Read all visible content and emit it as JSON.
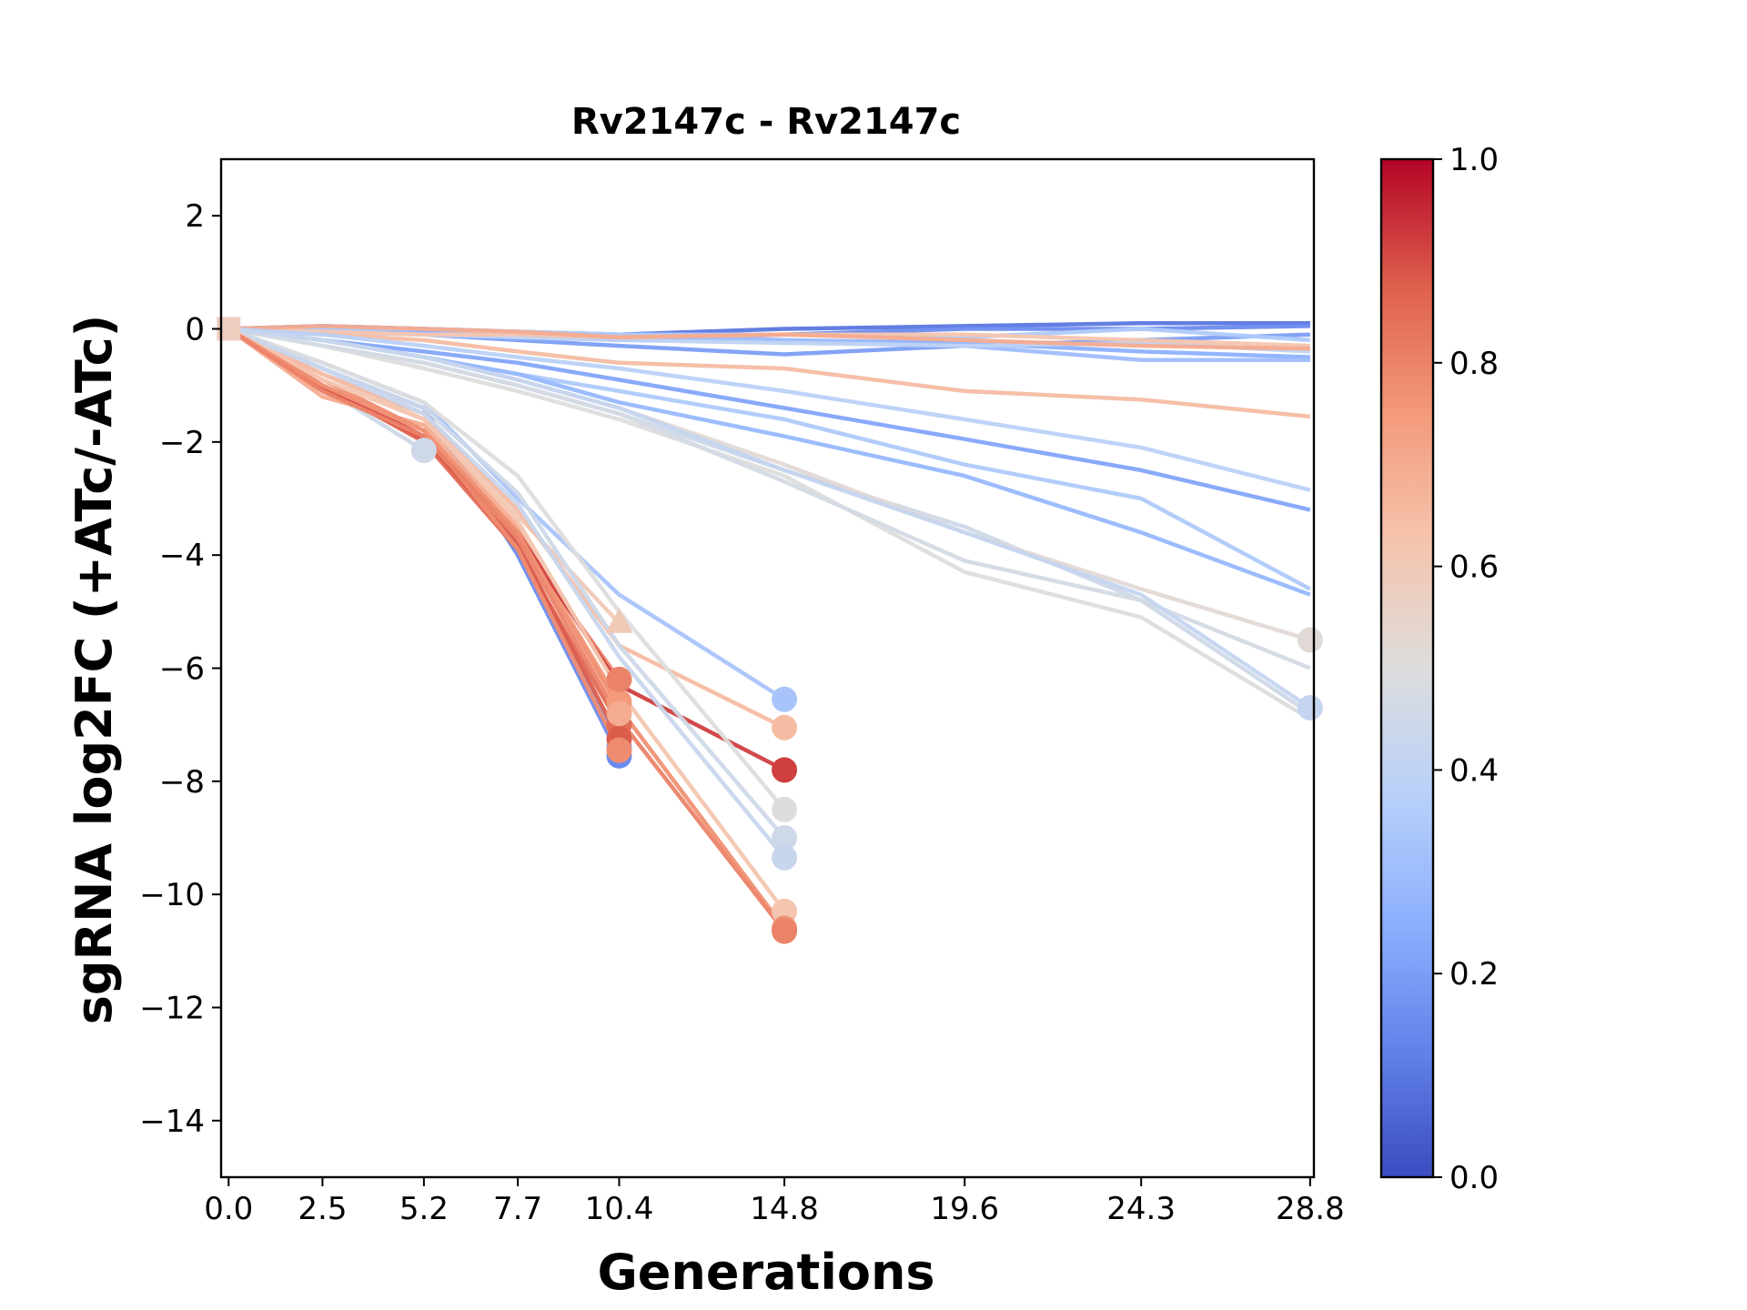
{
  "chart_data": {
    "type": "line",
    "title": "Rv2147c - Rv2147c",
    "xlabel": "Generations",
    "ylabel": "sgRNA log2FC (+ATc/-ATc)",
    "x_ticks": [
      "0.0",
      "2.5",
      "5.2",
      "7.7",
      "10.4",
      "14.8",
      "19.6",
      "24.3",
      "28.8"
    ],
    "y_ticks": [
      2,
      0,
      -2,
      -4,
      -6,
      -8,
      -10,
      -12,
      -14
    ],
    "xlim": [
      -0.2,
      28.9
    ],
    "ylim": [
      -15,
      3
    ],
    "grid": false,
    "colorbar": {
      "colormap": "coolwarm",
      "range": [
        0.0,
        1.0
      ],
      "ticks": [
        "0.0",
        "0.2",
        "0.4",
        "0.6",
        "0.8",
        "1.0"
      ]
    },
    "series": [
      {
        "c": 0.1,
        "x": [
          0,
          2.5,
          5.2,
          7.7,
          10.4,
          14.8,
          19.6,
          24.3,
          28.8
        ],
        "y": [
          0,
          0.05,
          0.0,
          -0.05,
          -0.1,
          0.0,
          0.05,
          0.1,
          0.1
        ]
      },
      {
        "c": 0.15,
        "x": [
          0,
          2.5,
          5.2,
          7.7,
          10.4,
          14.8,
          19.6,
          24.3,
          28.8
        ],
        "y": [
          0,
          0.0,
          -0.05,
          -0.1,
          -0.2,
          -0.1,
          0.0,
          0.0,
          0.05
        ]
      },
      {
        "c": 0.2,
        "x": [
          0,
          2.5,
          5.2,
          7.7,
          10.4,
          14.8,
          19.6,
          24.3,
          28.8
        ],
        "y": [
          0,
          -0.05,
          -0.1,
          -0.2,
          -0.3,
          -0.45,
          -0.3,
          -0.2,
          -0.1
        ]
      },
      {
        "c": 0.25,
        "x": [
          0,
          2.5,
          5.2,
          7.7,
          10.4,
          14.8,
          19.6,
          24.3,
          28.8
        ],
        "y": [
          0,
          0.0,
          -0.05,
          -0.1,
          -0.15,
          -0.2,
          -0.25,
          -0.4,
          -0.5
        ]
      },
      {
        "c": 0.3,
        "x": [
          0,
          2.5,
          5.2,
          7.7,
          10.4,
          14.8,
          19.6,
          24.3,
          28.8
        ],
        "y": [
          0,
          -0.05,
          -0.1,
          -0.05,
          -0.1,
          -0.2,
          -0.3,
          -0.55,
          -0.55
        ]
      },
      {
        "c": 0.35,
        "x": [
          0,
          2.5,
          5.2,
          7.7,
          10.4,
          14.8,
          19.6,
          24.3,
          28.8
        ],
        "y": [
          0,
          0.0,
          0.0,
          -0.05,
          -0.1,
          -0.1,
          -0.15,
          0.0,
          -0.2
        ]
      },
      {
        "c": 0.4,
        "x": [
          0,
          2.5,
          5.2,
          7.7,
          10.4,
          14.8,
          19.6,
          24.3,
          28.8
        ],
        "y": [
          0,
          -0.05,
          -0.1,
          -0.15,
          -0.2,
          -0.25,
          -0.3,
          -0.25,
          -0.4
        ]
      },
      {
        "c": 0.62,
        "x": [
          0,
          2.5,
          5.2,
          7.7,
          10.4,
          14.8,
          19.6,
          24.3,
          28.8
        ],
        "y": [
          0,
          -0.05,
          -0.1,
          -0.1,
          -0.15,
          -0.1,
          -0.1,
          -0.2,
          -0.3
        ]
      },
      {
        "c": 0.7,
        "x": [
          0,
          2.5,
          5.2,
          7.7,
          10.4,
          14.8,
          19.6,
          24.3,
          28.8
        ],
        "y": [
          0,
          0.05,
          0.0,
          -0.05,
          -0.15,
          -0.1,
          -0.2,
          -0.3,
          -0.35
        ]
      },
      {
        "c": 0.65,
        "x": [
          0,
          2.5,
          5.2,
          7.7,
          10.4,
          14.8,
          19.6,
          24.3,
          28.8
        ],
        "y": [
          0,
          -0.1,
          -0.2,
          -0.4,
          -0.6,
          -0.7,
          -1.1,
          -1.25,
          -1.55
        ]
      },
      {
        "c": 0.22,
        "x": [
          0,
          2.5,
          5.2,
          7.7,
          10.4,
          14.8,
          19.6,
          24.3,
          28.8
        ],
        "y": [
          0,
          -0.2,
          -0.4,
          -0.6,
          -0.9,
          -1.4,
          -1.95,
          -2.5,
          -3.2
        ]
      },
      {
        "c": 0.35,
        "x": [
          0,
          2.5,
          5.2,
          7.7,
          10.4,
          14.8,
          19.6,
          24.3,
          28.8
        ],
        "y": [
          0,
          -0.2,
          -0.5,
          -0.8,
          -1.1,
          -1.6,
          -2.4,
          -3.0,
          -4.6
        ]
      },
      {
        "c": 0.38,
        "x": [
          0,
          2.5,
          5.2,
          7.7,
          10.4,
          14.8,
          19.6,
          24.3,
          28.8
        ],
        "y": [
          0,
          -0.1,
          -0.3,
          -0.5,
          -0.7,
          -1.1,
          -1.6,
          -2.1,
          -2.85
        ]
      },
      {
        "c": 0.28,
        "x": [
          0,
          2.5,
          5.2,
          7.7,
          10.4,
          14.8,
          19.6,
          24.3,
          28.8
        ],
        "y": [
          0,
          -0.2,
          -0.5,
          -0.8,
          -1.3,
          -1.9,
          -2.6,
          -3.6,
          -4.7
        ]
      },
      {
        "c": 0.45,
        "x": [
          0,
          2.5,
          5.2,
          7.7,
          10.4,
          14.8,
          19.6,
          24.3,
          28.8
        ],
        "y": [
          0,
          -0.3,
          -0.6,
          -1.0,
          -1.5,
          -2.5,
          -3.5,
          -4.8,
          -6.8
        ]
      },
      {
        "c": 0.5,
        "x": [
          0,
          2.5,
          5.2,
          7.7,
          10.4,
          14.8,
          19.6,
          24.3,
          28.8
        ],
        "y": [
          0,
          -0.3,
          -0.7,
          -1.1,
          -1.6,
          -2.6,
          -4.3,
          -5.1,
          -6.9
        ]
      },
      {
        "c": 0.52,
        "x": [
          0,
          2.5,
          5.2,
          7.7,
          10.4,
          14.8,
          19.6,
          24.3,
          28.8
        ],
        "y": [
          0,
          -0.2,
          -0.5,
          -0.9,
          -1.4,
          -2.4,
          -3.6,
          -4.6,
          -5.5
        ],
        "marker_last": true
      },
      {
        "c": 0.47,
        "x": [
          0,
          2.5,
          5.2,
          7.7,
          10.4,
          14.8,
          19.6,
          24.3,
          28.8
        ],
        "y": [
          0,
          -0.3,
          -0.6,
          -1.0,
          -1.5,
          -2.7,
          -4.1,
          -4.8,
          -6.0
        ]
      },
      {
        "c": 0.42,
        "x": [
          0,
          2.5,
          5.2,
          7.7,
          10.4,
          14.8,
          19.6,
          24.3,
          28.8
        ],
        "y": [
          0,
          -0.2,
          -0.5,
          -0.9,
          -1.4,
          -2.5,
          -3.6,
          -4.7,
          -6.7
        ],
        "marker_last": true
      },
      {
        "c": 0.45,
        "x": [
          0,
          5.2
        ],
        "y": [
          0,
          -2.15
        ],
        "marker_last": true
      },
      {
        "c": 0.15,
        "x": [
          0,
          2.5,
          5.2,
          7.7,
          10.4
        ],
        "y": [
          0,
          -0.7,
          -1.4,
          -4.0,
          -7.55
        ],
        "marker_last": true
      },
      {
        "c": 0.2,
        "x": [
          0,
          2.5,
          5.2,
          7.7,
          10.4
        ],
        "y": [
          0,
          -0.8,
          -1.5,
          -3.8,
          -7.4
        ],
        "marker_last": true
      },
      {
        "c": 0.75,
        "x": [
          0,
          2.5,
          5.2,
          7.7,
          10.4
        ],
        "y": [
          0,
          -1.0,
          -1.8,
          -3.6,
          -6.6
        ],
        "marker_last": true
      },
      {
        "c": 0.8,
        "x": [
          0,
          2.5,
          5.2,
          7.7,
          10.4
        ],
        "y": [
          0,
          -1.1,
          -1.9,
          -3.7,
          -6.2
        ],
        "marker_last": true
      },
      {
        "c": 0.85,
        "x": [
          0,
          2.5,
          5.2,
          7.7,
          10.4
        ],
        "y": [
          0,
          -1.0,
          -2.0,
          -3.9,
          -7.0
        ],
        "marker_last": true
      },
      {
        "c": 0.88,
        "x": [
          0,
          2.5,
          5.2,
          7.7,
          10.4
        ],
        "y": [
          0,
          -1.05,
          -1.95,
          -3.8,
          -7.25
        ],
        "marker_last": true
      },
      {
        "c": 0.7,
        "x": [
          0,
          2.5,
          5.2,
          7.7,
          10.4
        ],
        "y": [
          0,
          -1.2,
          -1.7,
          -3.5,
          -6.8
        ],
        "marker_last": true
      },
      {
        "c": 0.78,
        "x": [
          0,
          2.5,
          5.2,
          7.7,
          10.4
        ],
        "y": [
          0,
          -0.9,
          -1.8,
          -3.9,
          -7.45
        ],
        "marker_last": true
      },
      {
        "c": 0.6,
        "x": [
          0,
          2.5,
          5.2,
          7.7,
          10.4
        ],
        "y": [
          0,
          -0.8,
          -1.6,
          -3.3,
          -5.2
        ],
        "marker_last": true,
        "marker": "triangle"
      },
      {
        "c": 0.92,
        "x": [
          0,
          2.5,
          5.2,
          7.7,
          10.4,
          14.8
        ],
        "y": [
          0,
          -1.0,
          -1.9,
          -3.6,
          -6.3,
          -7.8
        ],
        "marker_last": true
      },
      {
        "c": 0.33,
        "x": [
          0,
          2.5,
          5.2,
          7.7,
          10.4,
          14.8
        ],
        "y": [
          0,
          -0.6,
          -1.3,
          -3.0,
          -4.7,
          -6.55
        ],
        "marker_last": true
      },
      {
        "c": 0.65,
        "x": [
          0,
          2.5,
          5.2,
          7.7,
          10.4,
          14.8
        ],
        "y": [
          0,
          -0.8,
          -1.5,
          -3.2,
          -5.6,
          -7.05
        ],
        "marker_last": true
      },
      {
        "c": 0.5,
        "x": [
          0,
          2.5,
          5.2,
          7.7,
          10.4,
          14.8
        ],
        "y": [
          0,
          -0.6,
          -1.3,
          -2.6,
          -5.0,
          -8.5
        ],
        "marker_last": true
      },
      {
        "c": 0.45,
        "x": [
          0,
          2.5,
          5.2,
          7.7,
          10.4,
          14.8
        ],
        "y": [
          0,
          -0.7,
          -1.4,
          -2.9,
          -5.6,
          -9.0
        ],
        "marker_last": true
      },
      {
        "c": 0.43,
        "x": [
          0,
          2.5,
          5.2,
          7.7,
          10.4,
          14.8
        ],
        "y": [
          0,
          -0.7,
          -1.5,
          -3.1,
          -5.8,
          -9.35
        ],
        "marker_last": true
      },
      {
        "c": 0.62,
        "x": [
          0,
          2.5,
          5.2,
          7.7,
          10.4,
          14.8
        ],
        "y": [
          0,
          -0.9,
          -1.6,
          -3.4,
          -6.4,
          -10.3
        ],
        "marker_last": true
      },
      {
        "c": 0.77,
        "x": [
          0,
          2.5,
          5.2,
          7.7,
          10.4,
          14.8
        ],
        "y": [
          0,
          -1.0,
          -1.8,
          -3.6,
          -6.7,
          -10.6
        ],
        "marker_last": true
      },
      {
        "c": 0.8,
        "x": [
          0,
          2.5,
          5.2,
          7.7,
          10.4,
          14.8
        ],
        "y": [
          0,
          -1.1,
          -1.9,
          -3.7,
          -6.9,
          -10.65
        ],
        "marker_last": true
      }
    ]
  }
}
